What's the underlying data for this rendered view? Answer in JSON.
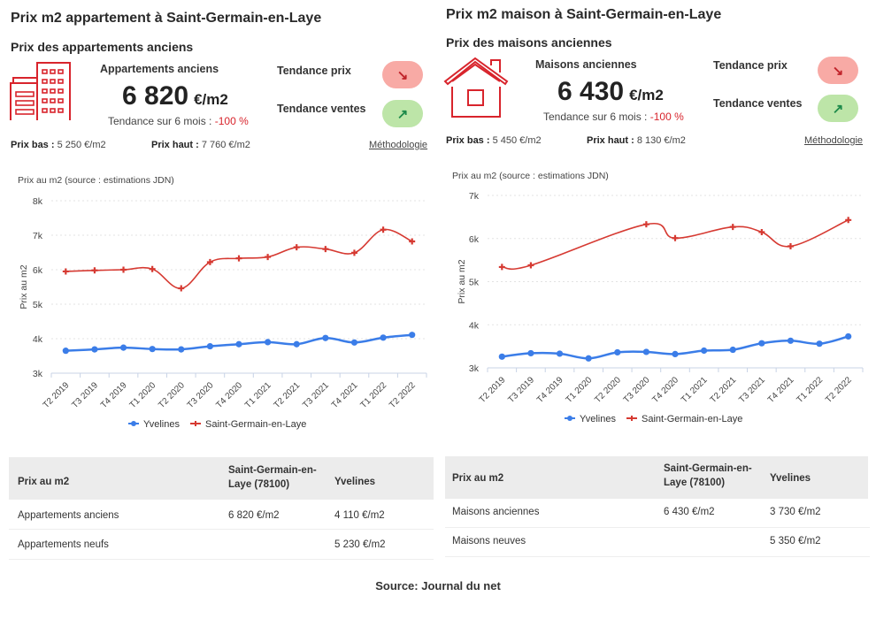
{
  "colors": {
    "accent_red": "#d8242c",
    "series_blue": "#3b7de8",
    "series_red": "#d63a32"
  },
  "left": {
    "title": "Prix m2 appartement à Saint-Germain-en-Laye",
    "subtitle": "Prix des appartements anciens",
    "icon": "building-icon",
    "kpi_label": "Appartements anciens",
    "kpi_value": "6 820",
    "kpi_unit": "€/m2",
    "trend_prefix": "Tendance sur 6 mois : ",
    "trend_value": "-100 %",
    "tendance_prix_label": "Tendance prix",
    "tendance_prix_icon": "arrow-down-right-icon",
    "tendance_ventes_label": "Tendance ventes",
    "tendance_ventes_icon": "arrow-up-right-icon",
    "prix_bas_label": "Prix bas :",
    "prix_bas_value": " 5 250 €/m2",
    "prix_haut_label": "Prix haut :",
    "prix_haut_value": " 7 760 €/m2",
    "methodology_link": "Méthodologie",
    "chart_caption": "Prix au m2 (source : estimations JDN)",
    "table": {
      "headers": [
        "Prix au m2",
        "Saint-Germain-en-Laye (78100)",
        "Yvelines"
      ],
      "rows": [
        [
          "Appartements anciens",
          "6 820 €/m2",
          "4 110 €/m2"
        ],
        [
          "Appartements neufs",
          "",
          "5 230 €/m2"
        ]
      ]
    }
  },
  "right": {
    "title": "Prix m2 maison à Saint-Germain-en-Laye",
    "subtitle": "Prix des maisons anciennes",
    "icon": "house-icon",
    "kpi_label": "Maisons anciennes",
    "kpi_value": "6 430",
    "kpi_unit": "€/m2",
    "trend_prefix": "Tendance sur 6 mois : ",
    "trend_value": "-100 %",
    "tendance_prix_label": "Tendance prix",
    "tendance_prix_icon": "arrow-down-right-icon",
    "tendance_ventes_label": "Tendance ventes",
    "tendance_ventes_icon": "arrow-up-right-icon",
    "prix_bas_label": "Prix bas :",
    "prix_bas_value": " 5 450 €/m2",
    "prix_haut_label": "Prix haut :",
    "prix_haut_value": " 8 130 €/m2",
    "methodology_link": "Méthodologie",
    "chart_caption": "Prix au m2 (source : estimations JDN)",
    "table": {
      "headers": [
        "Prix au m2",
        "Saint-Germain-en-Laye (78100)",
        "Yvelines"
      ],
      "rows": [
        [
          "Maisons anciennes",
          "6 430 €/m2",
          "3 730 €/m2"
        ],
        [
          "Maisons neuves",
          "",
          "5 350 €/m2"
        ]
      ]
    }
  },
  "source": "Source: Journal du net",
  "chart_data": [
    {
      "type": "line",
      "title": "Prix au m2 (source : estimations JDN)",
      "xlabel": "",
      "ylabel": "Prix au m2",
      "ylim": [
        3000,
        8000
      ],
      "yticks": [
        3000,
        4000,
        5000,
        6000,
        7000,
        8000
      ],
      "ytick_labels": [
        "3k",
        "4k",
        "5k",
        "6k",
        "7k",
        "8k"
      ],
      "grid": true,
      "legend": "bottom",
      "categories": [
        "T2 2019",
        "T3 2019",
        "T4 2019",
        "T1 2020",
        "T2 2020",
        "T3 2020",
        "T4 2020",
        "T1 2021",
        "T2 2021",
        "T3 2021",
        "T4 2021",
        "T1 2022",
        "T2 2022"
      ],
      "series": [
        {
          "name": "Yvelines",
          "color": "#3b7de8",
          "values": [
            3650,
            3690,
            3740,
            3700,
            3690,
            3780,
            3840,
            3900,
            3840,
            4020,
            3890,
            4030,
            4110
          ]
        },
        {
          "name": "Saint-Germain-en-Laye",
          "color": "#d63a32",
          "values": [
            5950,
            5980,
            6000,
            6020,
            5460,
            6220,
            6330,
            6370,
            6650,
            6600,
            6490,
            7160,
            6820
          ]
        }
      ]
    },
    {
      "type": "line",
      "title": "Prix au m2 (source : estimations JDN)",
      "xlabel": "",
      "ylabel": "Prix au m2",
      "ylim": [
        3000,
        7000
      ],
      "yticks": [
        3000,
        4000,
        5000,
        6000,
        7000
      ],
      "ytick_labels": [
        "3k",
        "4k",
        "5k",
        "6k",
        "7k"
      ],
      "grid": true,
      "legend": "bottom",
      "categories": [
        "T2 2019",
        "T3 2019",
        "T4 2019",
        "T1 2020",
        "T2 2020",
        "T3 2020",
        "T4 2020",
        "T1 2021",
        "T2 2021",
        "T3 2021",
        "T4 2021",
        "T1 2022",
        "T2 2022"
      ],
      "series": [
        {
          "name": "Yvelines",
          "color": "#3b7de8",
          "values": [
            3260,
            3340,
            3330,
            3220,
            3360,
            3370,
            3320,
            3400,
            3420,
            3570,
            3630,
            3560,
            3730
          ]
        },
        {
          "name": "Saint-Germain-en-Laye",
          "color": "#d63a32",
          "values": [
            5340,
            5380,
            null,
            null,
            null,
            6330,
            6010,
            null,
            6270,
            6150,
            5820,
            null,
            6430
          ]
        }
      ]
    }
  ]
}
